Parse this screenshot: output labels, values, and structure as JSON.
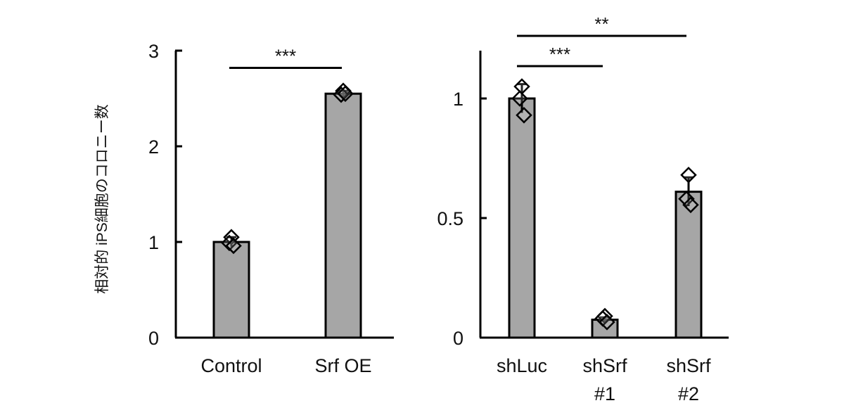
{
  "ylabel": "相対的 iPS細胞のコロニー数",
  "colors": {
    "bar_fill": "#a6a6a6",
    "stroke": "#000000",
    "background": "#ffffff"
  },
  "chart_data": [
    {
      "type": "bar",
      "categories": [
        "Control",
        "Srf OE"
      ],
      "values": [
        1.0,
        2.55
      ],
      "error": [
        0.05,
        0.03
      ],
      "points": [
        [
          1.05,
          0.99,
          0.96
        ],
        [
          2.58,
          2.54,
          2.55
        ]
      ],
      "ylim": [
        0,
        3
      ],
      "yticks": [
        0,
        1,
        2,
        3
      ],
      "ytick_labels": [
        "0",
        "1",
        "2",
        "3"
      ],
      "marker": "diamond",
      "significance": [
        {
          "from": 0,
          "to": 1,
          "label": "***",
          "y": 2.82
        }
      ]
    },
    {
      "type": "bar",
      "categories": [
        [
          "shLuc"
        ],
        [
          "shSrf",
          "#1"
        ],
        [
          "shSrf",
          "#2"
        ]
      ],
      "values": [
        1.0,
        0.075,
        0.61
      ],
      "error": [
        0.06,
        0.01,
        0.06
      ],
      "points": [
        [
          1.05,
          1.0,
          0.93
        ],
        [
          0.09,
          0.08,
          0.065
        ],
        [
          0.68,
          0.58,
          0.555
        ]
      ],
      "ylim": [
        0,
        1.2
      ],
      "yticks": [
        0,
        0.5,
        1
      ],
      "ytick_labels": [
        "0",
        "0.5",
        "1"
      ],
      "marker": "diamond",
      "significance": [
        {
          "from": 0,
          "to": 1,
          "label": "***",
          "y": 1.14
        },
        {
          "from": 0,
          "to": 2,
          "label": "**",
          "y": 1.27
        }
      ]
    }
  ]
}
